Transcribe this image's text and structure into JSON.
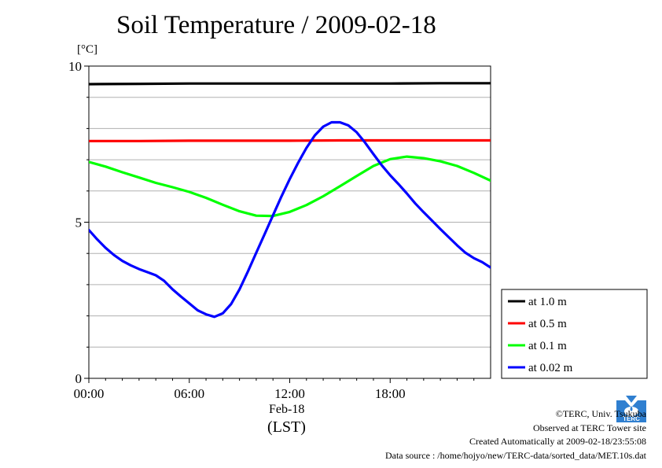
{
  "page": {
    "title": "Soil Temperature / 2009-02-18",
    "y_unit": "[°C]",
    "x_date": "Feb-18",
    "x_zone": "(LST)"
  },
  "credits": {
    "line1": "©TERC, Univ. Tsukuba",
    "line2": "Observed at TERC Tower site",
    "line3": "Created Automatically at 2009-02-18/23:55:08",
    "line4": "Data source : /home/hojyo/new/TERC-data/sorted_data/MET.10s.dat"
  },
  "logo": {
    "icon": "terc-logo-icon",
    "text": "TERC",
    "color": "#2f7fd0"
  },
  "chart_data": {
    "type": "line",
    "title": "Soil Temperature / 2009-02-18",
    "ylabel": "[°C]",
    "xlabel": "Feb-18 (LST)",
    "xlim": [
      0,
      24
    ],
    "ylim": [
      0,
      10
    ],
    "x_ticks": [
      0,
      6,
      12,
      18
    ],
    "x_tick_labels": [
      "00:00",
      "06:00",
      "12:00",
      "18:00"
    ],
    "y_ticks": [
      0,
      5,
      10
    ],
    "y_tick_labels": [
      "0",
      "5",
      "10"
    ],
    "grid": "horizontal every 1 °C",
    "legend_position": "right, lower",
    "series": [
      {
        "name": "at 1.0 m",
        "color": "#000000",
        "x": [
          0,
          3,
          6,
          9,
          12,
          15,
          18,
          21,
          24
        ],
        "y": [
          9.42,
          9.43,
          9.44,
          9.44,
          9.44,
          9.44,
          9.44,
          9.45,
          9.45
        ]
      },
      {
        "name": "at 0.5 m",
        "color": "#ff0000",
        "x": [
          0,
          3,
          6,
          9,
          12,
          15,
          18,
          21,
          24
        ],
        "y": [
          7.6,
          7.6,
          7.61,
          7.61,
          7.61,
          7.62,
          7.62,
          7.62,
          7.62
        ]
      },
      {
        "name": "at 0.1 m",
        "color": "#00ff00",
        "x": [
          0,
          1,
          2,
          3,
          4,
          5,
          6,
          7,
          8,
          9,
          10,
          11,
          12,
          13,
          14,
          15,
          16,
          17,
          18,
          19,
          20,
          21,
          22,
          23,
          24
        ],
        "y": [
          6.93,
          6.78,
          6.6,
          6.43,
          6.26,
          6.12,
          5.97,
          5.78,
          5.56,
          5.35,
          5.21,
          5.2,
          5.33,
          5.55,
          5.83,
          6.15,
          6.48,
          6.8,
          7.02,
          7.1,
          7.05,
          6.95,
          6.8,
          6.58,
          6.33
        ]
      },
      {
        "name": "at 0.02 m",
        "color": "#0000ff",
        "x": [
          0,
          0.5,
          1,
          1.5,
          2,
          2.5,
          3,
          3.5,
          4,
          4.5,
          5,
          5.5,
          6,
          6.5,
          7,
          7.5,
          8,
          8.5,
          9,
          9.5,
          10,
          10.5,
          11,
          11.5,
          12,
          12.5,
          13,
          13.5,
          14,
          14.5,
          15,
          15.5,
          16,
          16.5,
          17,
          17.5,
          18,
          18.5,
          19,
          19.5,
          20,
          20.5,
          21,
          21.5,
          22,
          22.5,
          23,
          23.5,
          24
        ],
        "y": [
          4.75,
          4.45,
          4.18,
          3.95,
          3.76,
          3.62,
          3.5,
          3.4,
          3.3,
          3.12,
          2.85,
          2.62,
          2.4,
          2.18,
          2.05,
          1.97,
          2.08,
          2.38,
          2.85,
          3.42,
          4.02,
          4.62,
          5.22,
          5.82,
          6.38,
          6.9,
          7.38,
          7.78,
          8.06,
          8.2,
          8.2,
          8.1,
          7.88,
          7.55,
          7.18,
          6.82,
          6.5,
          6.22,
          5.92,
          5.6,
          5.32,
          5.05,
          4.78,
          4.52,
          4.26,
          4.02,
          3.85,
          3.72,
          3.55
        ]
      }
    ]
  }
}
